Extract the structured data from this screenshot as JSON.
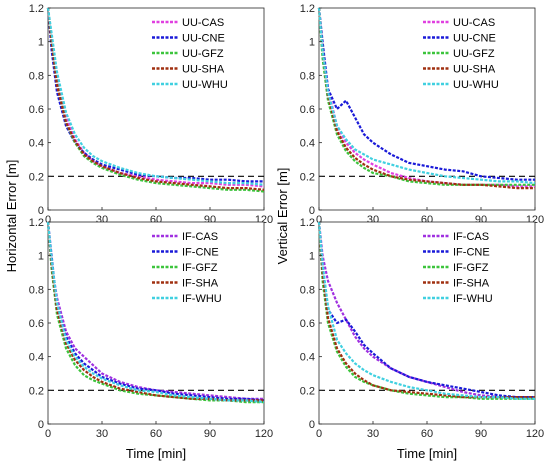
{
  "chart_data": [
    {
      "type": "line",
      "ylabel": "Horizontal Error [m]",
      "xlabel": "",
      "xlim": [
        0,
        120
      ],
      "ylim": [
        0,
        1.2
      ],
      "xticks": [
        "0",
        "30",
        "60",
        "90",
        "120"
      ],
      "yticks": [
        "0",
        "0.2",
        "0.4",
        "0.6",
        "0.8",
        "1",
        "1.2"
      ],
      "reference_line": 0.2,
      "legend_position": "top-right",
      "x": [
        0,
        2,
        5,
        10,
        15,
        20,
        25,
        30,
        40,
        50,
        60,
        70,
        80,
        90,
        100,
        110,
        120
      ],
      "series": [
        {
          "name": "UU-CAS",
          "color": "#e040e0",
          "values": [
            1.2,
            1.02,
            0.78,
            0.55,
            0.42,
            0.34,
            0.29,
            0.26,
            0.22,
            0.2,
            0.18,
            0.17,
            0.16,
            0.16,
            0.15,
            0.15,
            0.14
          ]
        },
        {
          "name": "UU-CNE",
          "color": "#1a1ad8",
          "values": [
            1.2,
            0.95,
            0.7,
            0.5,
            0.4,
            0.34,
            0.3,
            0.27,
            0.24,
            0.21,
            0.2,
            0.19,
            0.19,
            0.18,
            0.18,
            0.17,
            0.17
          ]
        },
        {
          "name": "UU-GFZ",
          "color": "#3cc43c",
          "values": [
            1.2,
            1.0,
            0.75,
            0.52,
            0.4,
            0.32,
            0.28,
            0.25,
            0.21,
            0.18,
            0.16,
            0.15,
            0.14,
            0.13,
            0.12,
            0.12,
            0.11
          ]
        },
        {
          "name": "UU-SHA",
          "color": "#a03010",
          "values": [
            1.2,
            1.0,
            0.74,
            0.52,
            0.41,
            0.33,
            0.29,
            0.26,
            0.22,
            0.19,
            0.17,
            0.16,
            0.15,
            0.14,
            0.13,
            0.13,
            0.12
          ]
        },
        {
          "name": "UU-WHU",
          "color": "#40d0e0",
          "values": [
            1.2,
            1.05,
            0.82,
            0.58,
            0.45,
            0.37,
            0.32,
            0.29,
            0.25,
            0.22,
            0.2,
            0.19,
            0.18,
            0.17,
            0.16,
            0.16,
            0.15
          ]
        }
      ]
    },
    {
      "type": "line",
      "ylabel": "Vertical Error [m]",
      "xlabel": "",
      "xlim": [
        0,
        120
      ],
      "ylim": [
        0,
        1.2
      ],
      "xticks": [
        "0",
        "30",
        "60",
        "90",
        "120"
      ],
      "yticks": [
        "0",
        "0.2",
        "0.4",
        "0.6",
        "0.8",
        "1",
        "1.2"
      ],
      "reference_line": 0.2,
      "legend_position": "top-right",
      "x": [
        0,
        2,
        5,
        10,
        15,
        20,
        25,
        30,
        40,
        50,
        60,
        70,
        80,
        90,
        100,
        110,
        120
      ],
      "series": [
        {
          "name": "UU-CAS",
          "color": "#e040e0",
          "values": [
            1.2,
            0.98,
            0.72,
            0.5,
            0.4,
            0.34,
            0.3,
            0.27,
            0.22,
            0.19,
            0.17,
            0.16,
            0.15,
            0.15,
            0.15,
            0.14,
            0.14
          ]
        },
        {
          "name": "UU-CNE",
          "color": "#1a1ad8",
          "values": [
            1.2,
            1.0,
            0.72,
            0.6,
            0.65,
            0.55,
            0.45,
            0.4,
            0.33,
            0.28,
            0.26,
            0.24,
            0.23,
            0.2,
            0.19,
            0.18,
            0.18
          ]
        },
        {
          "name": "UU-GFZ",
          "color": "#3cc43c",
          "values": [
            1.2,
            0.9,
            0.65,
            0.45,
            0.35,
            0.29,
            0.25,
            0.22,
            0.2,
            0.17,
            0.16,
            0.15,
            0.15,
            0.15,
            0.15,
            0.15,
            0.15
          ]
        },
        {
          "name": "UU-SHA",
          "color": "#a03010",
          "values": [
            1.2,
            0.95,
            0.68,
            0.47,
            0.37,
            0.31,
            0.27,
            0.24,
            0.2,
            0.18,
            0.17,
            0.16,
            0.15,
            0.15,
            0.14,
            0.13,
            0.13
          ]
        },
        {
          "name": "UU-WHU",
          "color": "#40d0e0",
          "values": [
            1.2,
            0.95,
            0.7,
            0.5,
            0.42,
            0.36,
            0.33,
            0.3,
            0.27,
            0.24,
            0.22,
            0.2,
            0.19,
            0.18,
            0.17,
            0.17,
            0.16
          ]
        }
      ]
    },
    {
      "type": "line",
      "ylabel": "",
      "xlabel": "Time [min]",
      "xlim": [
        0,
        120
      ],
      "ylim": [
        0,
        1.2
      ],
      "xticks": [
        "0",
        "30",
        "60",
        "90",
        "120"
      ],
      "yticks": [
        "0",
        "0.2",
        "0.4",
        "0.6",
        "0.8",
        "1",
        "1.2"
      ],
      "reference_line": 0.2,
      "legend_position": "top-right",
      "x": [
        0,
        2,
        5,
        10,
        15,
        20,
        25,
        30,
        40,
        50,
        60,
        70,
        80,
        90,
        100,
        110,
        120
      ],
      "series": [
        {
          "name": "IF-CAS",
          "color": "#a030e0",
          "values": [
            1.2,
            0.95,
            0.75,
            0.55,
            0.45,
            0.4,
            0.35,
            0.3,
            0.25,
            0.22,
            0.2,
            0.19,
            0.18,
            0.17,
            0.16,
            0.15,
            0.15
          ]
        },
        {
          "name": "IF-CNE",
          "color": "#1a1ad8",
          "values": [
            1.2,
            1.0,
            0.7,
            0.52,
            0.42,
            0.36,
            0.32,
            0.28,
            0.24,
            0.21,
            0.2,
            0.18,
            0.17,
            0.16,
            0.15,
            0.15,
            0.14
          ]
        },
        {
          "name": "IF-GFZ",
          "color": "#3cc43c",
          "values": [
            1.2,
            0.92,
            0.65,
            0.45,
            0.35,
            0.29,
            0.26,
            0.24,
            0.2,
            0.18,
            0.17,
            0.16,
            0.15,
            0.14,
            0.14,
            0.13,
            0.13
          ]
        },
        {
          "name": "IF-SHA",
          "color": "#a03010",
          "values": [
            1.2,
            0.95,
            0.68,
            0.48,
            0.38,
            0.32,
            0.28,
            0.25,
            0.21,
            0.19,
            0.17,
            0.16,
            0.15,
            0.15,
            0.14,
            0.14,
            0.14
          ]
        },
        {
          "name": "IF-WHU",
          "color": "#40d0e0",
          "values": [
            1.2,
            0.98,
            0.72,
            0.5,
            0.4,
            0.34,
            0.3,
            0.27,
            0.23,
            0.2,
            0.19,
            0.17,
            0.16,
            0.15,
            0.14,
            0.14,
            0.13
          ]
        }
      ]
    },
    {
      "type": "line",
      "ylabel": "",
      "xlabel": "Time [min]",
      "xlim": [
        0,
        120
      ],
      "ylim": [
        0,
        1.2
      ],
      "xticks": [
        "0",
        "30",
        "60",
        "90",
        "120"
      ],
      "yticks": [
        "0",
        "0.2",
        "0.4",
        "0.6",
        "0.8",
        "1",
        "1.2"
      ],
      "reference_line": 0.2,
      "legend_position": "top-right",
      "x": [
        0,
        2,
        5,
        10,
        15,
        20,
        25,
        30,
        40,
        50,
        60,
        70,
        80,
        90,
        100,
        110,
        120
      ],
      "series": [
        {
          "name": "IF-CAS",
          "color": "#a030e0",
          "values": [
            1.2,
            1.0,
            0.85,
            0.72,
            0.62,
            0.52,
            0.45,
            0.4,
            0.33,
            0.28,
            0.25,
            0.22,
            0.19,
            0.17,
            0.16,
            0.16,
            0.15
          ]
        },
        {
          "name": "IF-CNE",
          "color": "#1a1ad8",
          "values": [
            1.2,
            0.92,
            0.68,
            0.6,
            0.62,
            0.55,
            0.47,
            0.42,
            0.33,
            0.28,
            0.25,
            0.23,
            0.21,
            0.19,
            0.17,
            0.16,
            0.16
          ]
        },
        {
          "name": "IF-GFZ",
          "color": "#3cc43c",
          "values": [
            1.2,
            0.85,
            0.6,
            0.43,
            0.34,
            0.28,
            0.25,
            0.23,
            0.2,
            0.18,
            0.17,
            0.16,
            0.16,
            0.15,
            0.15,
            0.15,
            0.15
          ]
        },
        {
          "name": "IF-SHA",
          "color": "#a03010",
          "values": [
            1.2,
            0.9,
            0.63,
            0.45,
            0.36,
            0.3,
            0.26,
            0.23,
            0.2,
            0.19,
            0.18,
            0.17,
            0.16,
            0.16,
            0.16,
            0.16,
            0.16
          ]
        },
        {
          "name": "IF-WHU",
          "color": "#40d0e0",
          "values": [
            1.2,
            0.95,
            0.7,
            0.5,
            0.42,
            0.36,
            0.32,
            0.29,
            0.25,
            0.22,
            0.2,
            0.18,
            0.17,
            0.16,
            0.16,
            0.15,
            0.15
          ]
        }
      ]
    }
  ]
}
